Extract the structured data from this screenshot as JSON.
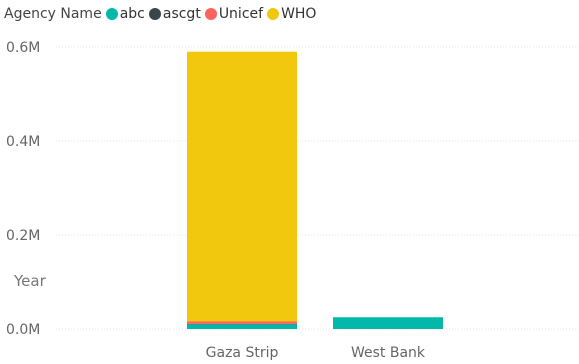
{
  "legend": {
    "title": "Agency Name",
    "items": [
      {
        "label": "abc",
        "color": "#01B8AA"
      },
      {
        "label": "ascgt",
        "color": "#374649"
      },
      {
        "label": "Unicef",
        "color": "#FD625E"
      },
      {
        "label": "WHO",
        "color": "#F2C80F"
      }
    ]
  },
  "chart_data": {
    "type": "bar",
    "stacked": true,
    "categories": [
      "Gaza Strip",
      "West Bank"
    ],
    "series": [
      {
        "name": "abc",
        "color": "#01B8AA",
        "values": [
          10000,
          25000
        ]
      },
      {
        "name": "ascgt",
        "color": "#374649",
        "values": [
          1000,
          0
        ]
      },
      {
        "name": "Unicef",
        "color": "#FD625E",
        "values": [
          5000,
          0
        ]
      },
      {
        "name": "WHO",
        "color": "#F2C80F",
        "values": [
          574000,
          0
        ]
      }
    ],
    "ylabel": "Year",
    "ylim": [
      0,
      600000
    ],
    "yticks": [
      {
        "value": 0,
        "label": "0.0M"
      },
      {
        "value": 200000,
        "label": "0.2M"
      },
      {
        "value": 400000,
        "label": "0.4M"
      },
      {
        "value": 600000,
        "label": "0.6M"
      }
    ],
    "grid": true,
    "legend_position": "top-left"
  }
}
